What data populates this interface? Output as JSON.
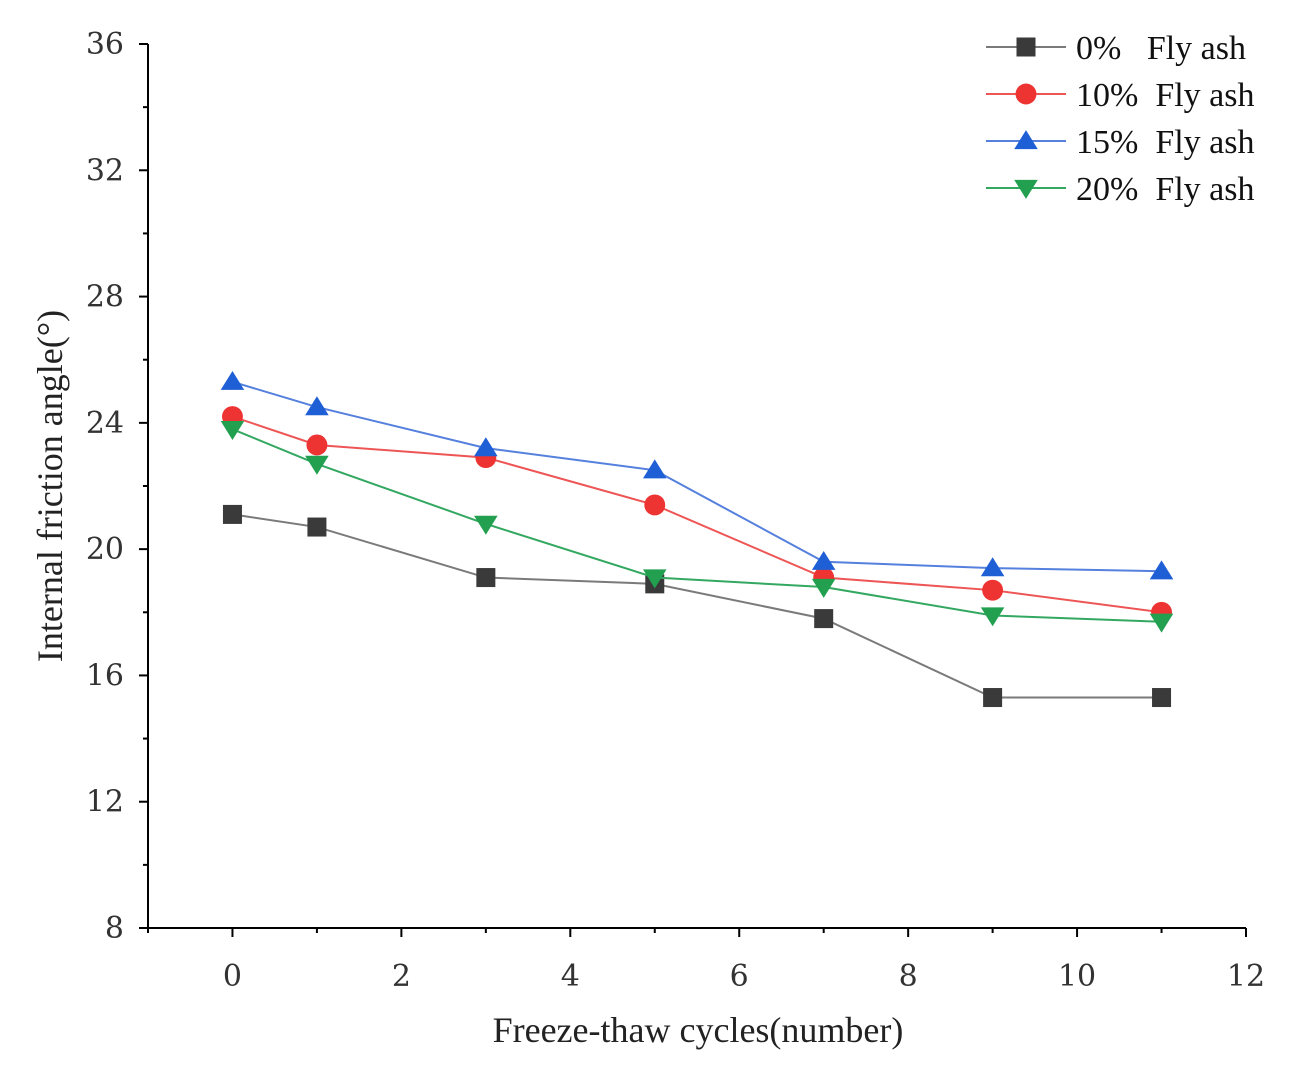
{
  "chart_data": {
    "type": "line",
    "title": "",
    "xlabel": "Freeze-thaw cycles(number)",
    "ylabel": "Internal friction angle(°)",
    "xlim": [
      -1,
      12
    ],
    "ylim": [
      8,
      36
    ],
    "xticks": [
      0,
      2,
      4,
      6,
      8,
      10,
      12
    ],
    "yticks": [
      8,
      12,
      16,
      20,
      24,
      28,
      32,
      36
    ],
    "x": [
      0,
      1,
      3,
      5,
      7,
      9,
      11
    ],
    "grid": false,
    "legend_position": "top-right",
    "series": [
      {
        "name": "0%   Fly ash",
        "marker": "square",
        "color": "#3a3a3a",
        "line_color": "#7a7a7a",
        "values": [
          21.1,
          20.7,
          19.1,
          18.9,
          17.8,
          15.3,
          15.3
        ]
      },
      {
        "name": "10%  Fly ash",
        "marker": "circle",
        "color": "#ee3333",
        "line_color": "#ee5555",
        "values": [
          24.2,
          23.3,
          22.9,
          21.4,
          19.1,
          18.7,
          18.0
        ]
      },
      {
        "name": "15%  Fly ash",
        "marker": "triangle-up",
        "color": "#1f5fd6",
        "line_color": "#5580dd",
        "values": [
          25.3,
          24.5,
          23.2,
          22.5,
          19.6,
          19.4,
          19.3
        ]
      },
      {
        "name": "20%  Fly ash",
        "marker": "triangle-down",
        "color": "#22a050",
        "line_color": "#33a860",
        "values": [
          23.8,
          22.7,
          20.8,
          19.1,
          18.8,
          17.9,
          17.7
        ]
      }
    ]
  }
}
